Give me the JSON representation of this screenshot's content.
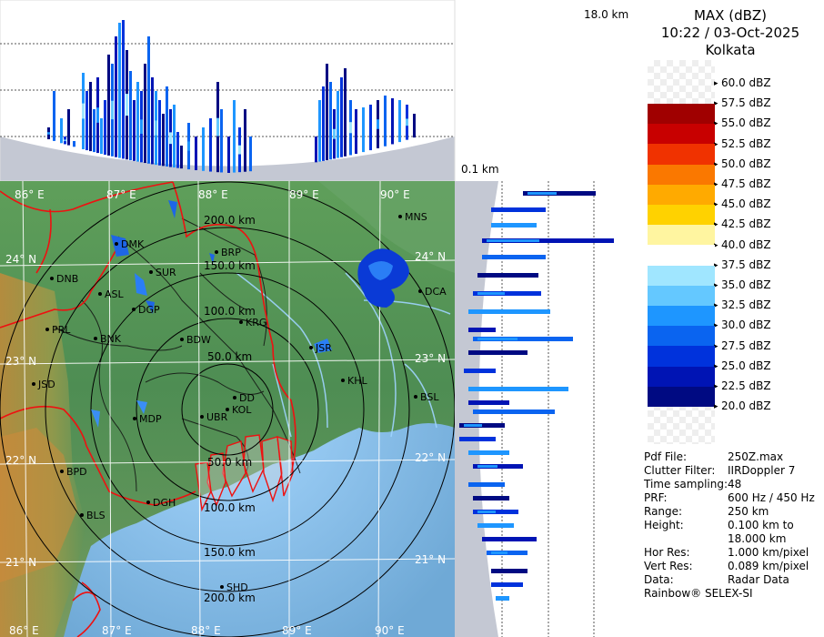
{
  "title": {
    "product": "MAX (dBZ)",
    "datetime": "10:22 / 03-Oct-2025",
    "site": "Kolkata"
  },
  "section_labels": {
    "top_height": "18.0 km",
    "side_height": "0.1 km"
  },
  "legend": {
    "items": [
      {
        "label": "60.0 dBZ",
        "color": "#ffffff"
      },
      {
        "label": "57.5 dBZ",
        "color": "#ffffff"
      },
      {
        "label": "55.0 dBZ",
        "color": "#a00000"
      },
      {
        "label": "52.5 dBZ",
        "color": "#c80000"
      },
      {
        "label": "50.0 dBZ",
        "color": "#f03200"
      },
      {
        "label": "47.5 dBZ",
        "color": "#fa7800"
      },
      {
        "label": "45.0 dBZ",
        "color": "#ffaa00"
      },
      {
        "label": "42.5 dBZ",
        "color": "#ffd200"
      },
      {
        "label": "40.0 dBZ",
        "color": "#fff5a0"
      },
      {
        "label": "37.5 dBZ",
        "color": "#ffffff"
      },
      {
        "label": "35.0 dBZ",
        "color": "#a0e6ff"
      },
      {
        "label": "32.5 dBZ",
        "color": "#64c8ff"
      },
      {
        "label": "30.0 dBZ",
        "color": "#1e96ff"
      },
      {
        "label": "27.5 dBZ",
        "color": "#0a64f0"
      },
      {
        "label": "25.0 dBZ",
        "color": "#0032dc"
      },
      {
        "label": "22.5 dBZ",
        "color": "#0014b4"
      },
      {
        "label": "20.0 dBZ",
        "color": "#000a82"
      }
    ]
  },
  "metadata": [
    {
      "key": "Pdf File:",
      "value": "250Z.max"
    },
    {
      "key": "Clutter Filter:",
      "value": "IIRDoppler 7"
    },
    {
      "key": "Time sampling:",
      "value": "48"
    },
    {
      "key": "PRF:",
      "value": "600 Hz / 450 Hz"
    },
    {
      "key": "Range:",
      "value": "250 km"
    },
    {
      "key": "Height:",
      "value": "0.100 km to"
    },
    {
      "key": "",
      "value": "18.000 km"
    },
    {
      "key": "Hor Res:",
      "value": "1.000 km/pixel"
    },
    {
      "key": "Vert Res:",
      "value": "0.089 km/pixel"
    },
    {
      "key": "Data:",
      "value": "Radar Data"
    }
  ],
  "footer": "Rainbow® SELEX-SI",
  "map": {
    "range_labels": [
      "200.0 km",
      "150.0 km",
      "100.0 km",
      "50.0 km",
      "50.0 km",
      "100.0 km",
      "150.0 km",
      "200.0 km"
    ],
    "lon_labels_top": [
      "86° E",
      "87° E",
      "88° E",
      "89° E",
      "90° E"
    ],
    "lon_labels_bottom": [
      "86° E",
      "87° E",
      "88° E",
      "89° E",
      "90° E"
    ],
    "lat_labels_left": [
      "24° N",
      "23° N",
      "22° N",
      "21° N"
    ],
    "lat_labels_right": [
      "24° N",
      "23° N",
      "22° N",
      "21° N"
    ],
    "cities": [
      "MNS",
      "BRP",
      "DMK",
      "SUR",
      "DNB",
      "ASL",
      "DGP",
      "KRG",
      "DCA",
      "PRL",
      "BNK",
      "BDW",
      "JSR",
      "KHL",
      "JSD",
      "DD",
      "KOL",
      "BSL",
      "MDP",
      "UBR",
      "BPD",
      "DGH",
      "BLS",
      "SHD"
    ]
  }
}
